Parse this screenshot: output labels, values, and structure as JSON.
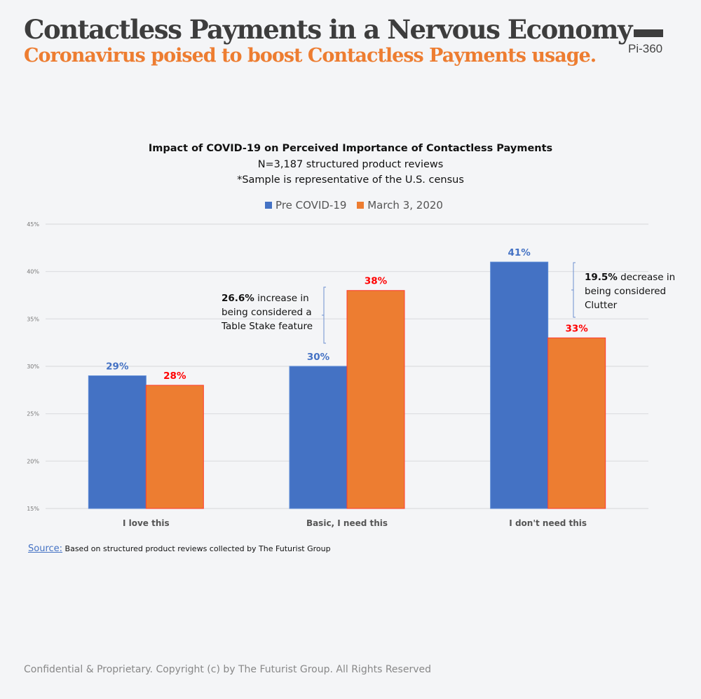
{
  "header": {
    "title": "Contactless Payments in a Nervous Economy",
    "subtitle": "Coronavirus poised to boost Contactless Payments usage.",
    "logo": "Pi-360"
  },
  "chart_data": {
    "type": "bar",
    "title": "Impact of COVID-19 on Perceived Importance of Contactless Payments",
    "subtitle1": "N=3,187 structured product reviews",
    "subtitle2": "*Sample is representative of the U.S. census",
    "categories": [
      "I love this",
      "Basic, I need this",
      "I don't need this"
    ],
    "series": [
      {
        "name": "Pre COVID-19",
        "values": [
          29,
          30,
          41
        ],
        "labels": [
          "29%",
          "30%",
          "41%"
        ],
        "color": "#4472c4",
        "label_color": "#4472c4"
      },
      {
        "name": "March 3, 2020",
        "values": [
          28,
          38,
          33
        ],
        "labels": [
          "28%",
          "38%",
          "33%"
        ],
        "color": "#ed7d31",
        "label_color": "#ff0000"
      }
    ],
    "ylim": [
      15,
      45
    ],
    "yticks": [
      "15%",
      "20%",
      "25%",
      "30%",
      "35%",
      "40%",
      "45%"
    ],
    "grid": true,
    "legend": "top",
    "annotations": [
      {
        "bold": "26.6%",
        "text1": " increase in",
        "text2": "being considered a",
        "text3": "Table Stake feature"
      },
      {
        "bold": "19.5%",
        "text1": " decrease in",
        "text2": "being considered",
        "text3": "Clutter"
      }
    ]
  },
  "source": {
    "link": "Source:",
    "text": " Based on structured product reviews collected by The Futurist Group"
  },
  "footer": "Confidential & Proprietary. Copyright (c) by The Futurist Group. All Rights Reserved"
}
